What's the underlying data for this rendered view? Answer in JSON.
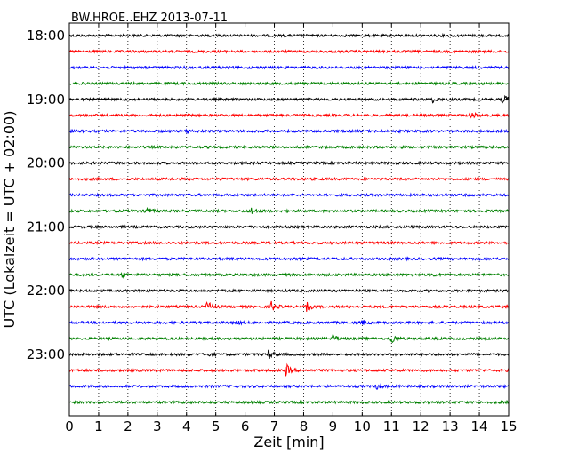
{
  "chart_data": {
    "type": "line",
    "title": "BW.HROE..EHZ 2013-07-11",
    "xlabel": "Zeit  [min]",
    "ylabel": "UTC (Lokalzeit = UTC + 02:00)",
    "xlim": [
      0,
      15
    ],
    "x_ticks": [
      0,
      1,
      2,
      3,
      4,
      5,
      6,
      7,
      8,
      9,
      10,
      11,
      12,
      13,
      14,
      15
    ],
    "x_tick_labels": [
      "0",
      "1",
      "2",
      "3",
      "4",
      "5",
      "6",
      "7",
      "8",
      "9",
      "10",
      "11",
      "12",
      "13",
      "14",
      "15"
    ],
    "rows_per_hour": 4,
    "minutes_per_row": 15,
    "y_tick_labels": [
      "18:00",
      "19:00",
      "20:00",
      "21:00",
      "22:00",
      "23:00"
    ],
    "grid": "vertical dotted at each minute",
    "series_colors": [
      "#000000",
      "#ff0000",
      "#0000ff",
      "#008000"
    ],
    "rows": [
      {
        "start": "18:00",
        "events": []
      },
      {
        "start": "18:15",
        "events": []
      },
      {
        "start": "18:30",
        "events": []
      },
      {
        "start": "18:45",
        "events": []
      },
      {
        "start": "19:00",
        "events": [
          {
            "minute": 12.4,
            "amplitude": 0.25
          },
          {
            "minute": 14.8,
            "amplitude": 0.45
          }
        ]
      },
      {
        "start": "19:15",
        "events": [
          {
            "minute": 13.7,
            "amplitude": 0.4
          }
        ]
      },
      {
        "start": "19:30",
        "events": [
          {
            "minute": 4.0,
            "amplitude": 0.15
          }
        ]
      },
      {
        "start": "19:45",
        "events": []
      },
      {
        "start": "20:00",
        "events": []
      },
      {
        "start": "20:15",
        "events": []
      },
      {
        "start": "20:30",
        "events": []
      },
      {
        "start": "20:45",
        "events": [
          {
            "minute": 2.6,
            "amplitude": 0.5
          },
          {
            "minute": 6.2,
            "amplitude": 0.35
          }
        ]
      },
      {
        "start": "21:00",
        "events": []
      },
      {
        "start": "21:15",
        "events": []
      },
      {
        "start": "21:30",
        "events": []
      },
      {
        "start": "21:45",
        "events": [
          {
            "minute": 1.8,
            "amplitude": 0.25
          },
          {
            "minute": 12.4,
            "amplitude": 0.15
          }
        ]
      },
      {
        "start": "22:00",
        "events": []
      },
      {
        "start": "22:15",
        "events": [
          {
            "minute": 4.7,
            "amplitude": 0.55
          },
          {
            "minute": 6.9,
            "amplitude": 0.5
          },
          {
            "minute": 8.1,
            "amplitude": 0.4
          }
        ]
      },
      {
        "start": "22:30",
        "events": [
          {
            "minute": 5.7,
            "amplitude": 0.15
          },
          {
            "minute": 10.0,
            "amplitude": 0.2
          }
        ]
      },
      {
        "start": "22:45",
        "events": [
          {
            "minute": 9.0,
            "amplitude": 0.35
          },
          {
            "minute": 11.0,
            "amplitude": 0.5
          }
        ]
      },
      {
        "start": "23:00",
        "events": [
          {
            "minute": 4.7,
            "amplitude": 0.25
          },
          {
            "minute": 6.8,
            "amplitude": 0.45
          }
        ]
      },
      {
        "start": "23:15",
        "events": [
          {
            "minute": 7.4,
            "amplitude": 0.6
          }
        ]
      },
      {
        "start": "23:30",
        "events": [
          {
            "minute": 10.5,
            "amplitude": 0.25
          }
        ]
      },
      {
        "start": "23:45",
        "events": []
      }
    ]
  }
}
